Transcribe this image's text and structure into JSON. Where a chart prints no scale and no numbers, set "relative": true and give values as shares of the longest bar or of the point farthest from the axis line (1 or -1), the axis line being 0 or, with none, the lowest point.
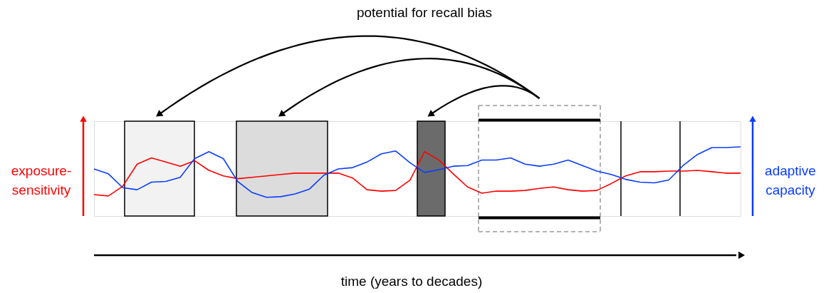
{
  "chart_data": {
    "type": "line",
    "relative": true,
    "annotations": [
      "potential for recall bias",
      "time (years to decades)"
    ],
    "tick_labels": false,
    "grid": false,
    "categories": [
      null,
      null,
      null,
      null,
      null,
      null,
      null,
      null,
      null,
      null,
      null,
      null,
      null,
      null,
      null,
      null,
      null,
      null,
      null,
      null,
      null,
      null,
      null,
      null,
      null,
      null,
      null,
      null,
      null,
      null,
      null,
      null,
      null,
      null,
      null,
      null,
      null,
      null,
      null,
      null,
      null,
      null,
      null,
      null,
      null,
      null
    ],
    "series": [
      {
        "name": "exposure-sensitivity",
        "color": "#ff0000",
        "values": [
          0.31,
          0.29,
          0.43,
          0.75,
          0.84,
          0.78,
          0.72,
          0.8,
          0.66,
          0.58,
          0.54,
          0.56,
          0.58,
          0.6,
          0.62,
          0.62,
          0.62,
          0.62,
          0.55,
          0.38,
          0.36,
          0.37,
          0.52,
          0.93,
          0.81,
          0.61,
          0.42,
          0.33,
          0.36,
          0.36,
          0.37,
          0.4,
          0.42,
          0.38,
          0.36,
          0.37,
          0.47,
          0.58,
          0.64,
          0.64,
          0.65,
          0.65,
          0.66,
          0.64,
          0.62,
          0.62
        ]
      },
      {
        "name": "adaptive capacity",
        "color": "#0a3cff",
        "values": [
          0.68,
          0.61,
          0.41,
          0.38,
          0.49,
          0.5,
          0.56,
          0.83,
          0.93,
          0.83,
          0.5,
          0.34,
          0.27,
          0.28,
          0.32,
          0.39,
          0.59,
          0.68,
          0.7,
          0.78,
          0.9,
          0.94,
          0.77,
          0.63,
          0.67,
          0.72,
          0.73,
          0.81,
          0.81,
          0.84,
          0.75,
          0.72,
          0.75,
          0.81,
          0.73,
          0.65,
          0.6,
          0.53,
          0.49,
          0.48,
          0.52,
          0.73,
          0.89,
          0.99,
          0.99,
          1
        ]
      }
    ]
  }
}
